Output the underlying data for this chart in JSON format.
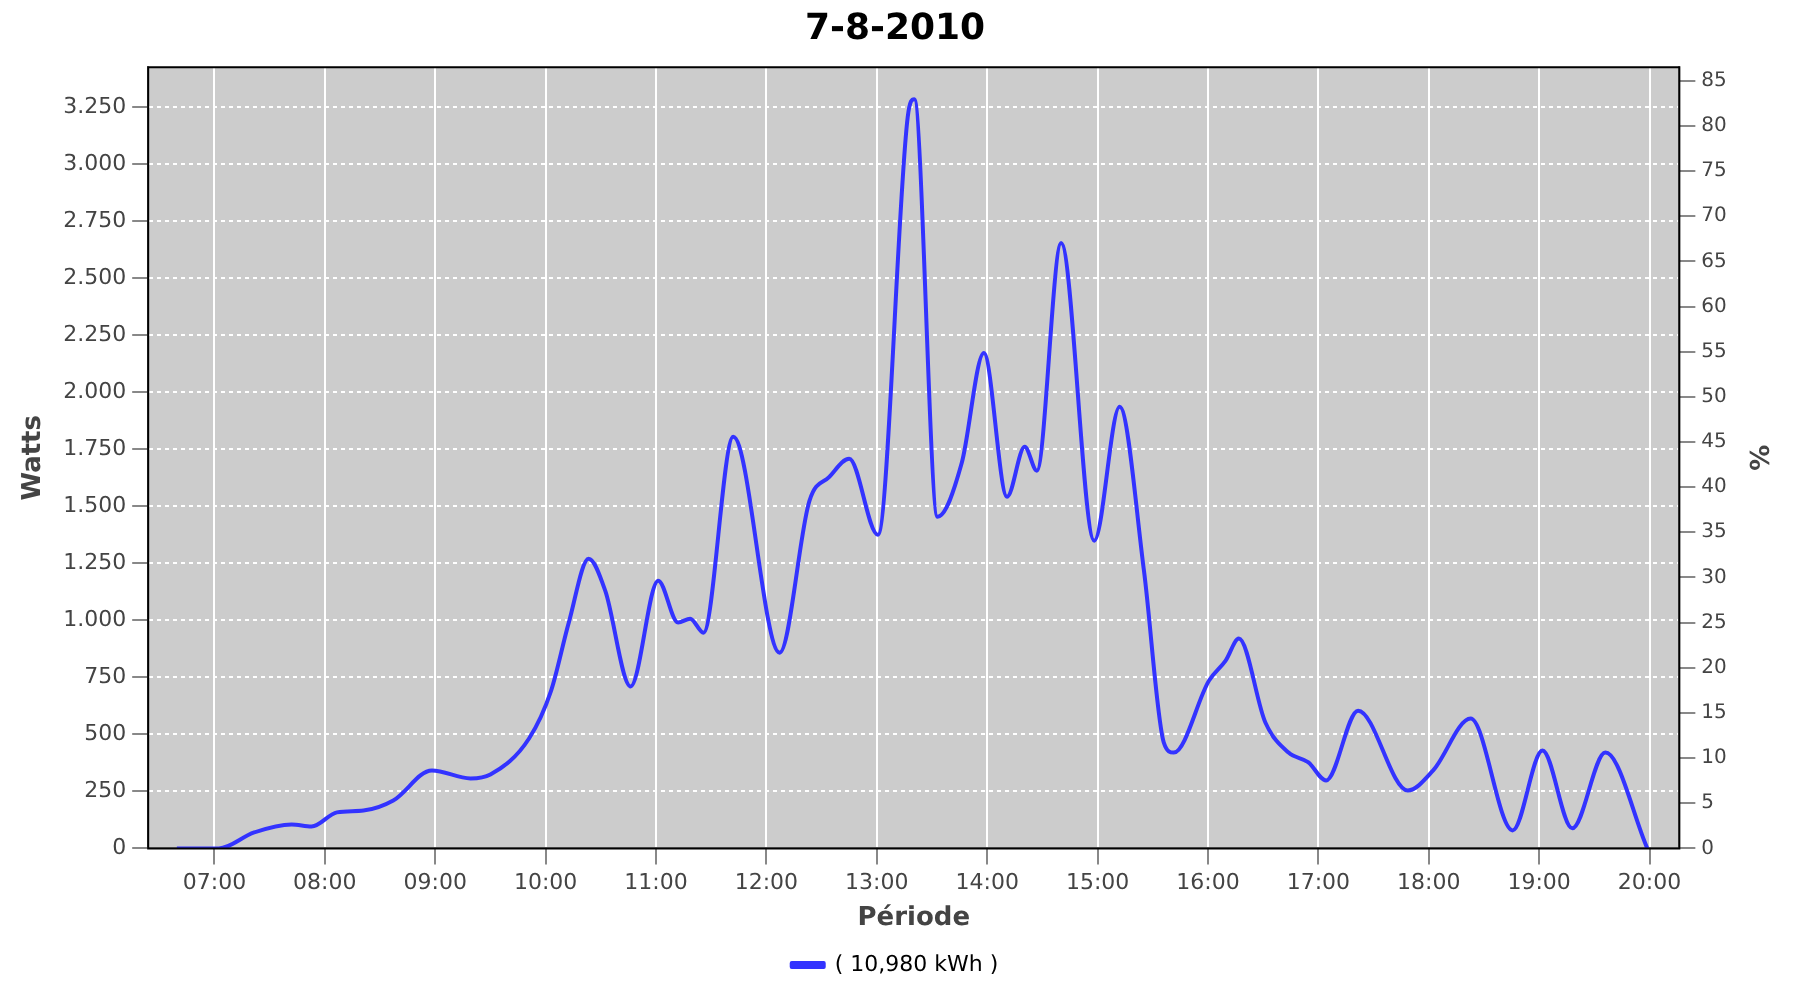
{
  "chart_data": {
    "type": "line",
    "title": "7-8-2010",
    "xlabel": "Période",
    "ylabel": "Watts",
    "y2label": "%",
    "x": [
      6.66,
      7.04,
      7.36,
      7.7,
      7.88,
      8.11,
      8.35,
      8.62,
      8.97,
      9.32,
      9.5,
      9.85,
      10.05,
      10.21,
      10.39,
      10.54,
      10.77,
      11.02,
      11.2,
      11.31,
      11.43,
      11.7,
      12.12,
      12.39,
      12.57,
      12.75,
      13.01,
      13.28,
      13.34,
      13.55,
      13.77,
      13.97,
      14.18,
      14.34,
      14.45,
      14.67,
      14.97,
      15.2,
      15.42,
      15.6,
      15.69,
      16.01,
      16.16,
      16.28,
      16.52,
      16.73,
      16.91,
      17.07,
      17.36,
      17.81,
      18.04,
      18.38,
      18.76,
      19.03,
      19.3,
      19.6,
      19.98
    ],
    "series": [
      {
        "name": "( 10,980 kWh )",
        "color": "#3333ff",
        "values": [
          0,
          0,
          70,
          105,
          96,
          158,
          166,
          210,
          342,
          307,
          324,
          482,
          692,
          990,
          1270,
          1130,
          710,
          1174,
          990,
          1007,
          946,
          1805,
          858,
          1524,
          1629,
          1708,
          1375,
          3206,
          3285,
          1454,
          1691,
          2172,
          1542,
          1761,
          1656,
          2654,
          1349,
          1936,
          1218,
          464,
          420,
          736,
          823,
          920,
          552,
          420,
          377,
          298,
          604,
          254,
          342,
          569,
          79,
          429,
          88,
          420,
          0
        ]
      }
    ],
    "xlim": [
      6.4,
      20.27
    ],
    "xticks": [
      {
        "value": 7,
        "label": "07:00"
      },
      {
        "value": 8,
        "label": "08:00"
      },
      {
        "value": 9,
        "label": "09:00"
      },
      {
        "value": 10,
        "label": "10:00"
      },
      {
        "value": 11,
        "label": "11:00"
      },
      {
        "value": 12,
        "label": "12:00"
      },
      {
        "value": 13,
        "label": "13:00"
      },
      {
        "value": 14,
        "label": "14:00"
      },
      {
        "value": 15,
        "label": "15:00"
      },
      {
        "value": 16,
        "label": "16:00"
      },
      {
        "value": 17,
        "label": "17:00"
      },
      {
        "value": 18,
        "label": "18:00"
      },
      {
        "value": 19,
        "label": "19:00"
      },
      {
        "value": 20,
        "label": "20:00"
      }
    ],
    "ylim": [
      0,
      3425
    ],
    "yticks": [
      0,
      250,
      500,
      750,
      {
        "value": 1000,
        "label": "1.000"
      },
      {
        "value": 1250,
        "label": "1.250"
      },
      {
        "value": 1500,
        "label": "1.500"
      },
      {
        "value": 1750,
        "label": "1.750"
      },
      {
        "value": 2000,
        "label": "2.000"
      },
      {
        "value": 2250,
        "label": "2.250"
      },
      {
        "value": 2500,
        "label": "2.500"
      },
      {
        "value": 2750,
        "label": "2.750"
      },
      {
        "value": 3000,
        "label": "3.000"
      },
      {
        "value": 3250,
        "label": "3.250"
      }
    ],
    "y2lim": [
      0,
      86.5
    ],
    "y2ticks": [
      0,
      5,
      10,
      15,
      20,
      25,
      30,
      35,
      40,
      45,
      50,
      55,
      60,
      65,
      70,
      75,
      80,
      85
    ],
    "grid": true,
    "legend": "bottom",
    "marker": "none",
    "line_style": "solid"
  }
}
